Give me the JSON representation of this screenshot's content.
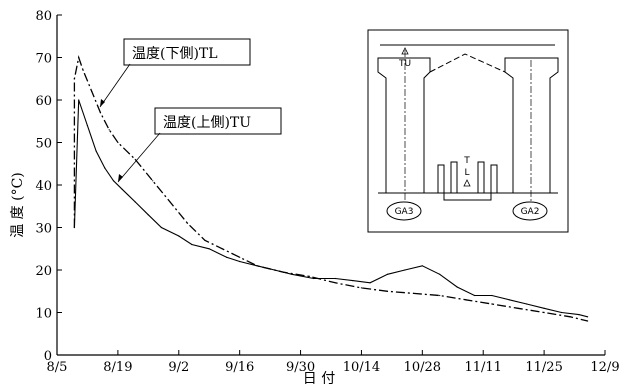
{
  "chart_data": {
    "type": "line",
    "title": "",
    "xlabel": "日 付",
    "ylabel": "温 度 (°C)",
    "xlim": [
      "8/5",
      "12/9"
    ],
    "ylim": [
      0,
      80
    ],
    "yticks": [
      0,
      10,
      20,
      30,
      40,
      50,
      60,
      70,
      80
    ],
    "xticks": [
      "8/5",
      "8/19",
      "9/2",
      "9/16",
      "9/30",
      "10/14",
      "10/28",
      "11/11",
      "11/25",
      "12/9"
    ],
    "grid": false,
    "series": [
      {
        "name": "温度(下側)TL",
        "style": "dash-dot",
        "x": [
          "8/9",
          "8/9",
          "8/10",
          "8/11",
          "8/13",
          "8/15",
          "8/17",
          "8/19",
          "8/23",
          "8/27",
          "8/31",
          "9/4",
          "9/8",
          "9/12",
          "9/16",
          "9/20",
          "9/26",
          "10/2",
          "10/8",
          "10/14",
          "10/20",
          "10/26",
          "11/1",
          "11/7",
          "11/13",
          "11/19",
          "11/25",
          "12/1",
          "12/5"
        ],
        "y": [
          30,
          65,
          70,
          67,
          62,
          57,
          53,
          50,
          46,
          41,
          36,
          31,
          27,
          25,
          23,
          21,
          19.5,
          18.5,
          17,
          15.8,
          15,
          14.5,
          14,
          13,
          12,
          11,
          10,
          9,
          8
        ]
      },
      {
        "name": "温度(上側)TU",
        "style": "solid-noisy",
        "x": [
          "8/9",
          "8/10",
          "8/12",
          "8/14",
          "8/16",
          "8/18",
          "8/20",
          "8/23",
          "8/26",
          "8/29",
          "9/2",
          "9/5",
          "9/9",
          "9/13",
          "9/16",
          "9/20",
          "9/24",
          "9/28",
          "10/3",
          "10/8",
          "10/12",
          "10/16",
          "10/20",
          "10/24",
          "10/28",
          "11/1",
          "11/5",
          "11/9",
          "11/13",
          "11/17",
          "11/21",
          "11/25",
          "11/29",
          "12/3",
          "12/5"
        ],
        "y": [
          30,
          60,
          54,
          48,
          44,
          41,
          39,
          36,
          33,
          30,
          28,
          26,
          25,
          23,
          22,
          21,
          20,
          19,
          18,
          18,
          17.5,
          17,
          19,
          20,
          21,
          19,
          16,
          14,
          14,
          13,
          12,
          11,
          10,
          9.5,
          9
        ]
      }
    ],
    "annotations": [
      {
        "text": "温度(下側)TL"
      },
      {
        "text": "温度(上側)TU"
      }
    ],
    "inset_labels": {
      "tu": "TU",
      "t": "T",
      "l": "L",
      "ga3": "GA3",
      "ga2": "GA2"
    }
  }
}
